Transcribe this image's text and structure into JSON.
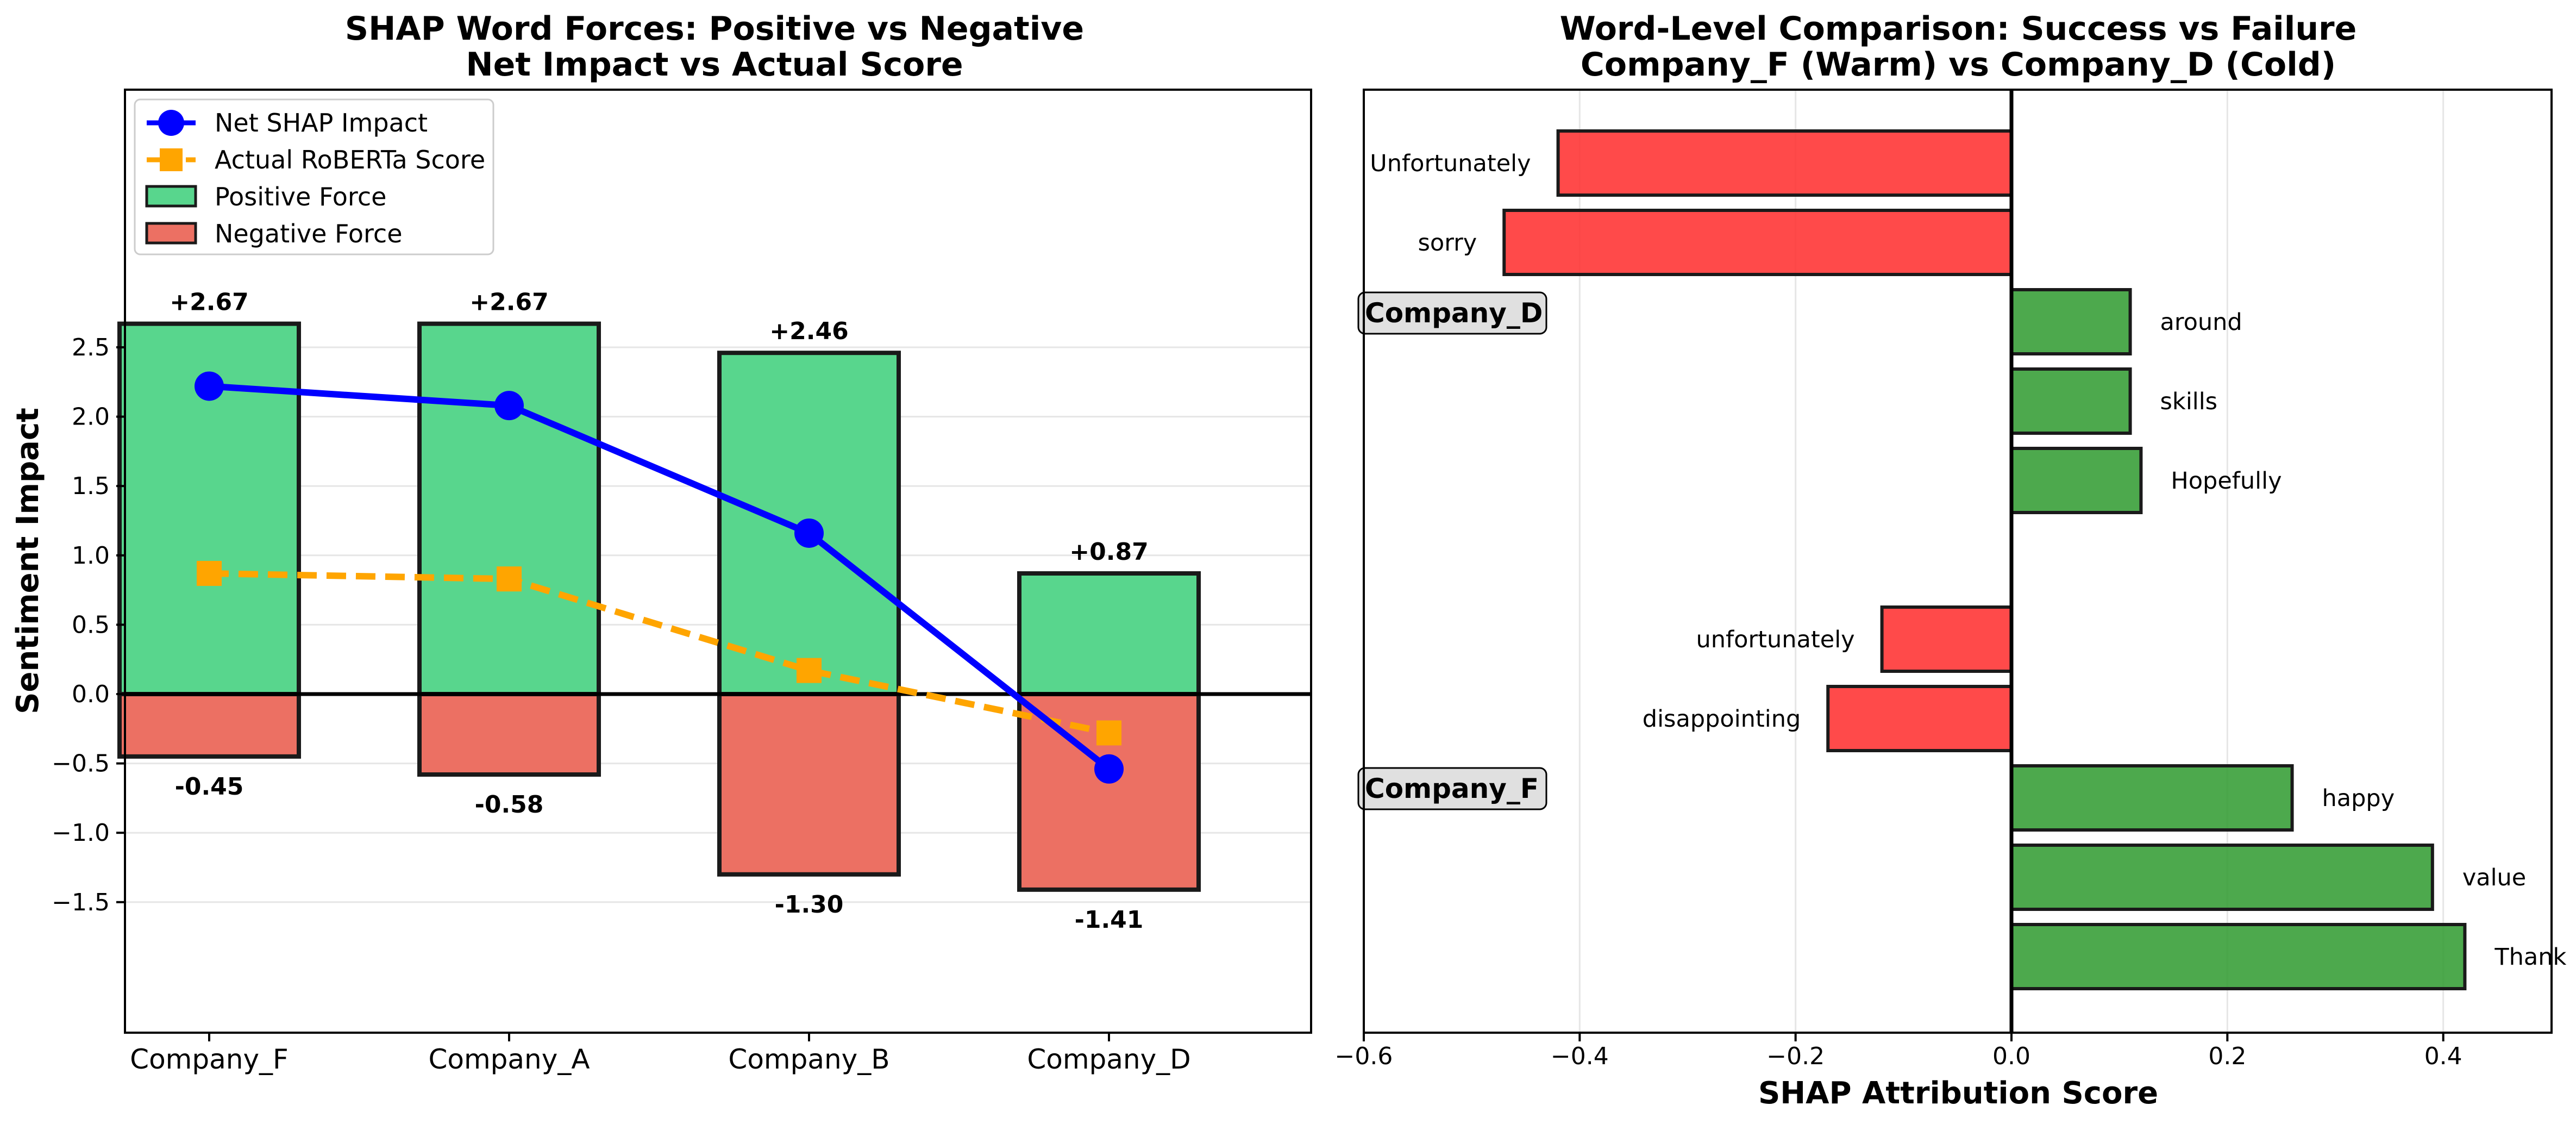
{
  "chart_data": [
    {
      "type": "bar",
      "title": "SHAP Word Forces: Positive vs Negative",
      "subtitle": "Net Impact vs Actual Score",
      "xlabel": "",
      "ylabel": "Sentiment Impact",
      "ylim": [
        -1.6,
        2.85
      ],
      "yticks": [
        "2.5",
        "2.0",
        "1.5",
        "1.0",
        "0.5",
        "0.0",
        "−0.5",
        "−1.0",
        "−1.5"
      ],
      "ytick_values": [
        2.5,
        2.0,
        1.5,
        1.0,
        0.5,
        0.0,
        -0.5,
        -1.0,
        -1.5
      ],
      "categories": [
        "Company_F",
        "Company_A",
        "Company_B",
        "Company_D"
      ],
      "grid": true,
      "legend_position": "top-left",
      "series": [
        {
          "name": "Positive Force",
          "kind": "bar",
          "color": "#58d68d",
          "values": [
            2.67,
            2.67,
            2.46,
            0.87
          ],
          "labels": [
            "+2.67",
            "+2.67",
            "+2.46",
            "+0.87"
          ]
        },
        {
          "name": "Negative Force",
          "kind": "bar",
          "color": "#ec7063",
          "values": [
            -0.45,
            -0.58,
            -1.3,
            -1.41
          ],
          "labels": [
            "-0.45",
            "-0.58",
            "-1.30",
            "-1.41"
          ]
        },
        {
          "name": "Net SHAP Impact",
          "kind": "line",
          "color": "#0000ff",
          "marker": "circle",
          "values": [
            2.22,
            2.08,
            1.16,
            -0.54
          ]
        },
        {
          "name": "Actual RoBERTa Score",
          "kind": "line",
          "color": "#ffa500",
          "marker": "square",
          "dashed": true,
          "values": [
            0.87,
            0.83,
            0.17,
            -0.28
          ]
        }
      ]
    },
    {
      "type": "bar",
      "orientation": "horizontal",
      "title": "Word-Level Comparison: Success vs Failure",
      "subtitle": "Company_F (Warm) vs Company_D (Cold)",
      "xlabel": "SHAP Attribution Score",
      "ylabel": "",
      "xlim": [
        -0.6,
        0.5
      ],
      "xticks": [
        "−0.6",
        "−0.4",
        "−0.2",
        "0.0",
        "0.2",
        "0.4"
      ],
      "xtick_values": [
        -0.6,
        -0.4,
        -0.2,
        0.0,
        0.2,
        0.4
      ],
      "grid": true,
      "positive_color": "#2e9a2e",
      "negative_color": "#ff2a2a",
      "groups": [
        {
          "name": "Company_D",
          "words": [
            {
              "word": "Unfortunately",
              "value": -0.42
            },
            {
              "word": "sorry",
              "value": -0.47
            },
            {
              "word": "around",
              "value": 0.11
            },
            {
              "word": "skills",
              "value": 0.11
            },
            {
              "word": "Hopefully",
              "value": 0.12
            }
          ]
        },
        {
          "name": "Company_F",
          "words": [
            {
              "word": "unfortunately",
              "value": -0.12
            },
            {
              "word": "disappointing",
              "value": -0.17
            },
            {
              "word": "happy",
              "value": 0.26
            },
            {
              "word": "value",
              "value": 0.39
            },
            {
              "word": "Thank",
              "value": 0.42
            }
          ]
        }
      ]
    }
  ]
}
